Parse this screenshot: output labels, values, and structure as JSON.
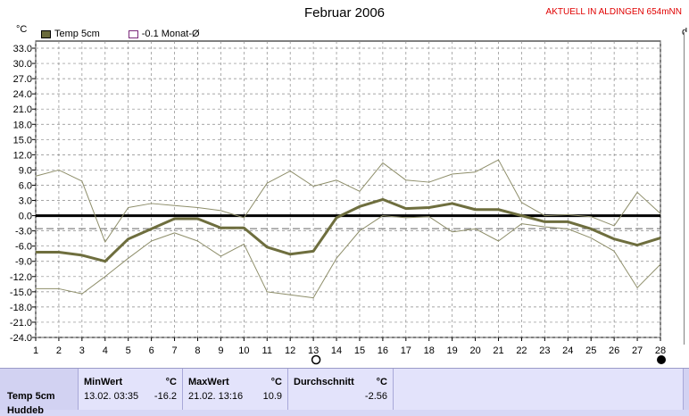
{
  "header": {
    "title": "Februar 2006",
    "alert": "AKTUELL IN ALDINGEN 654mNN",
    "unit_left": "°C",
    "unit_right": "d"
  },
  "legend": [
    {
      "label": "Temp 5cm",
      "color": "#6b6b3c"
    },
    {
      "label": "-0.1 Monat-Ø",
      "color": "#ffffff"
    }
  ],
  "colors": {
    "main": "#6e6e3e",
    "minmax": "#8e8e6a",
    "zero": "#000000",
    "avg": "#666666",
    "grid": "#888888"
  },
  "chart_data": {
    "type": "line",
    "title": "Februar 2006",
    "ylabel": "°C",
    "ylim": [
      -24.0,
      33.0
    ],
    "yticks": [
      "33.0",
      "30.0",
      "27.0",
      "24.0",
      "21.0",
      "18.0",
      "15.0",
      "12.0",
      "9.0",
      "6.0",
      "3.0",
      "0.0",
      "-3.0",
      "-6.0",
      "-9.0",
      "-12.0",
      "-15.0",
      "-18.0",
      "-21.0",
      "-24.0"
    ],
    "x": [
      1,
      2,
      3,
      4,
      5,
      6,
      7,
      8,
      9,
      10,
      11,
      12,
      13,
      14,
      15,
      16,
      17,
      18,
      19,
      20,
      21,
      22,
      23,
      24,
      25,
      26,
      27,
      28
    ],
    "grid": true,
    "average_line": -2.56,
    "series": [
      {
        "name": "Temp 5cm",
        "values": [
          -7.2,
          -7.2,
          -7.8,
          -9.0,
          -4.6,
          -2.6,
          -0.6,
          -0.6,
          -2.4,
          -2.4,
          -6.2,
          -7.6,
          -7.0,
          -0.4,
          1.8,
          3.2,
          1.4,
          1.6,
          2.4,
          1.2,
          1.2,
          0.0,
          -1.2,
          -1.2,
          -2.6,
          -4.6,
          -5.8,
          -4.4
        ]
      },
      {
        "name": "Max",
        "values": [
          7.8,
          9.0,
          6.8,
          -5.2,
          1.6,
          2.4,
          2.0,
          1.6,
          1.0,
          -0.4,
          6.4,
          8.8,
          5.8,
          7.0,
          4.8,
          10.4,
          7.0,
          6.6,
          8.2,
          8.6,
          11.0,
          2.6,
          0.0,
          0.2,
          -0.2,
          -2.0,
          4.6,
          0.4
        ]
      },
      {
        "name": "Min",
        "values": [
          -14.4,
          -14.4,
          -15.4,
          -12.0,
          -8.4,
          -5.0,
          -3.4,
          -5.0,
          -8.0,
          -5.6,
          -15.0,
          -15.6,
          -16.2,
          -8.4,
          -3.0,
          0.0,
          -0.4,
          -0.2,
          -3.2,
          -2.6,
          -5.0,
          -1.6,
          -2.2,
          -2.6,
          -4.4,
          -7.0,
          -14.2,
          -9.6
        ]
      }
    ]
  },
  "stats": {
    "row_label": "Temp 5cm",
    "row_label2": "Huddeb",
    "min": {
      "header": "MinWert",
      "unit": "°C",
      "date": "13.02.  03:35",
      "value": "-16.2"
    },
    "max": {
      "header": "MaxWert",
      "unit": "°C",
      "date": "21.02.  13:16",
      "value": "10.9"
    },
    "avg": {
      "header": "Durchschnitt",
      "unit": "°C",
      "value": "-2.56"
    }
  }
}
